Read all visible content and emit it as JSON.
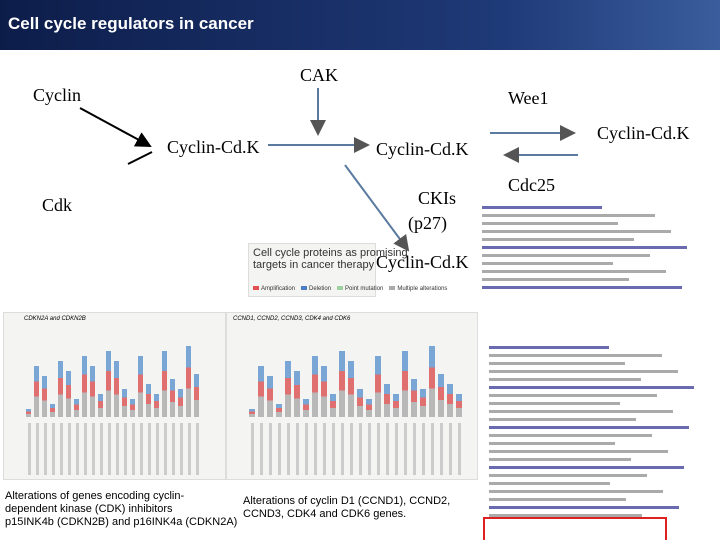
{
  "header": {
    "title": "Cell cycle regulators in cancer"
  },
  "diagram": {
    "cyclin": "Cyclin",
    "cdk": "Cdk",
    "complex_1": "Cyclin-Cd.K",
    "cak": "CAK",
    "complex_2": "Cyclin-Cd.K",
    "wee1": "Wee1",
    "complex_3": "Cyclin-Cd.K",
    "cdc25": "Cdc25",
    "ckis": "CKIs",
    "p27": "(p27)",
    "complex_4": "Cyclin-Cd.K"
  },
  "article": {
    "title_1": "Cell cycle proteins as promising",
    "title_2": "targets in cancer therapy",
    "legend": [
      "Amplification",
      "Deletion",
      "Point mutation",
      "Multiple alterations"
    ]
  },
  "charts": [
    {
      "title": "CDKN2A and CDKN2B",
      "caption": [
        "Alterations of genes encoding cyclin-",
        "dependent kinase (CDK) inhibitors",
        "p15INK4b (CDKN2B) and p16INK4a (CDKN2A)"
      ]
    },
    {
      "title": "CCND1, CCND2, CCND3, CDK4 and CDK6",
      "caption": [
        "Alterations of cyclin D1 (CCND1), CCND2,",
        "CCND3, CDK4 and CDK6 genes."
      ]
    }
  ]
}
